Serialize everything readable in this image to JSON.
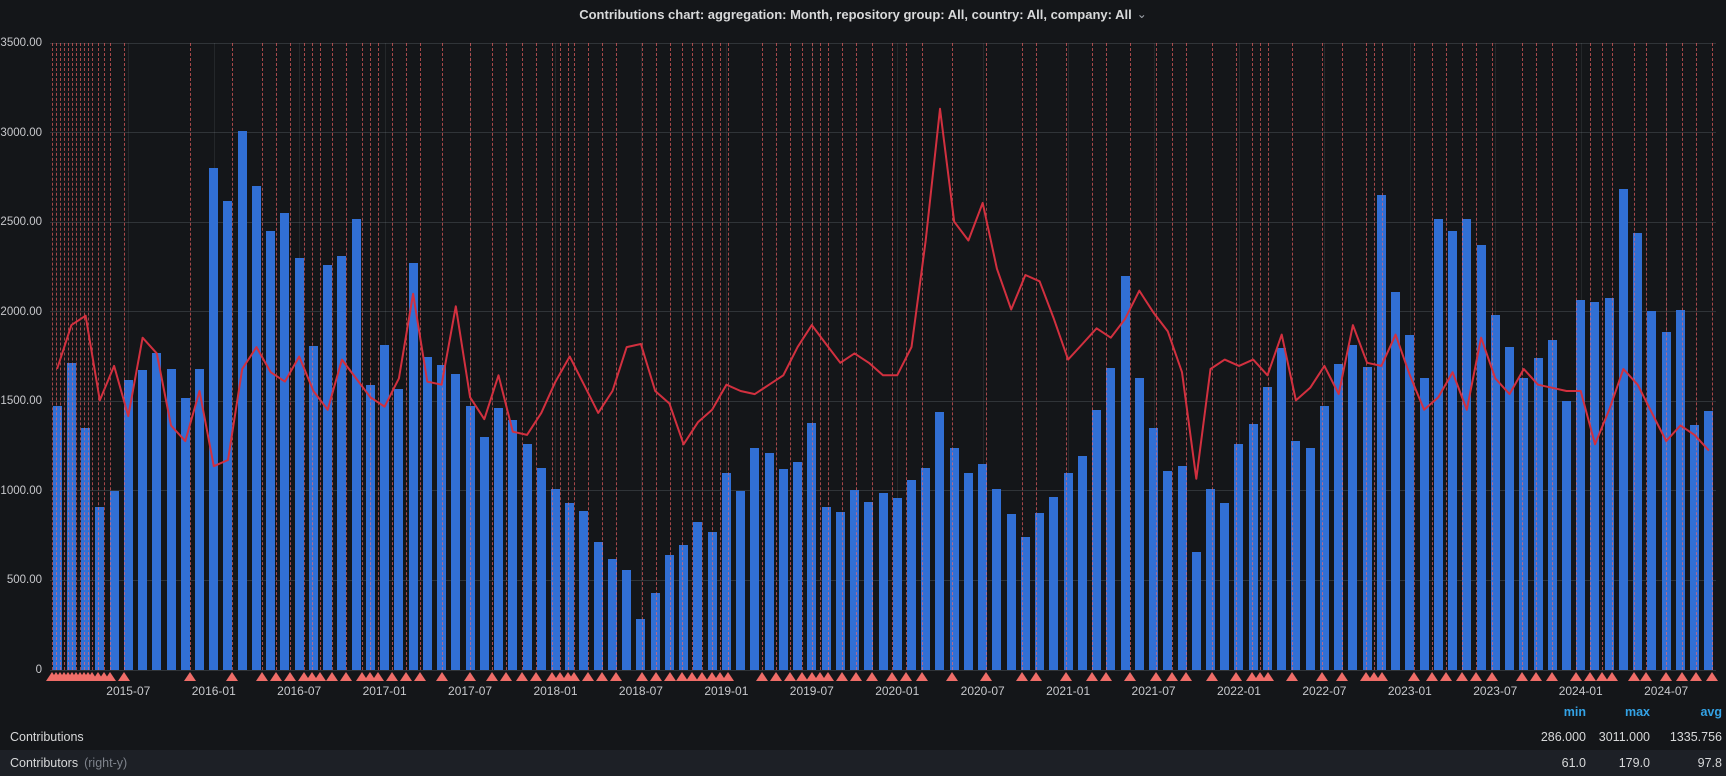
{
  "title": {
    "text": "Contributions chart: aggregation: Month, repository group: All, country: All, company: All"
  },
  "icons": {
    "chevron_down": "⌄"
  },
  "colors": {
    "background": "#141619",
    "bar": "#316fd4",
    "line": "#d2303f",
    "annotation": "rgba(255,103,103,0.62)",
    "annotation_marker": "#ef6d68",
    "grid": "rgba(201,209,224,0.16)",
    "axis_text": "#c7c8cc",
    "legend_header": "#33a2e5",
    "legend_text": "#d8d9da",
    "legend_row_stripe": "#1d2026"
  },
  "chart_data": {
    "type": "bar",
    "title": "Contributions chart: aggregation: Month, repository group: All, country: All, company: All",
    "xlabel": "",
    "ylabel": "",
    "grid": true,
    "legend_position": "bottom-table",
    "x": [
      "2015-02",
      "2015-03",
      "2015-04",
      "2015-05",
      "2015-06",
      "2015-07",
      "2015-08",
      "2015-09",
      "2015-10",
      "2015-11",
      "2015-12",
      "2016-01",
      "2016-02",
      "2016-03",
      "2016-04",
      "2016-05",
      "2016-06",
      "2016-07",
      "2016-08",
      "2016-09",
      "2016-10",
      "2016-11",
      "2016-12",
      "2017-01",
      "2017-02",
      "2017-03",
      "2017-04",
      "2017-05",
      "2017-06",
      "2017-07",
      "2017-08",
      "2017-09",
      "2017-10",
      "2017-11",
      "2017-12",
      "2018-01",
      "2018-02",
      "2018-03",
      "2018-04",
      "2018-05",
      "2018-06",
      "2018-07",
      "2018-08",
      "2018-09",
      "2018-10",
      "2018-11",
      "2018-12",
      "2019-01",
      "2019-02",
      "2019-03",
      "2019-04",
      "2019-05",
      "2019-06",
      "2019-07",
      "2019-08",
      "2019-09",
      "2019-10",
      "2019-11",
      "2019-12",
      "2020-01",
      "2020-02",
      "2020-03",
      "2020-04",
      "2020-05",
      "2020-06",
      "2020-07",
      "2020-08",
      "2020-09",
      "2020-10",
      "2020-11",
      "2020-12",
      "2021-01",
      "2021-02",
      "2021-03",
      "2021-04",
      "2021-05",
      "2021-06",
      "2021-07",
      "2021-08",
      "2021-09",
      "2021-10",
      "2021-11",
      "2021-12",
      "2022-01",
      "2022-02",
      "2022-03",
      "2022-04",
      "2022-05",
      "2022-06",
      "2022-07",
      "2022-08",
      "2022-09",
      "2022-10",
      "2022-11",
      "2022-12",
      "2023-01",
      "2023-02",
      "2023-03",
      "2023-04",
      "2023-05",
      "2023-06",
      "2023-07",
      "2023-08",
      "2023-09",
      "2023-10",
      "2023-11",
      "2023-12",
      "2024-01",
      "2024-02",
      "2024-03",
      "2024-04",
      "2024-05",
      "2024-06",
      "2024-07",
      "2024-08",
      "2024-09",
      "2024-10"
    ],
    "series": [
      {
        "name": "Contributions",
        "type": "bar",
        "axis": "left",
        "color": "#316fd4",
        "values": [
          1475,
          1715,
          1350,
          910,
          1000,
          1620,
          1675,
          1770,
          1680,
          1520,
          1680,
          2800,
          2620,
          3011,
          2700,
          2450,
          2550,
          2300,
          1810,
          2260,
          2310,
          2520,
          1590,
          1815,
          1570,
          2270,
          1745,
          1705,
          1655,
          1475,
          1300,
          1465,
          1395,
          1260,
          1130,
          1010,
          930,
          890,
          715,
          620,
          560,
          286,
          430,
          640,
          700,
          825,
          770,
          1100,
          1000,
          1240,
          1210,
          1120,
          1160,
          1380,
          910,
          880,
          1005,
          940,
          990,
          960,
          1060,
          1130,
          1440,
          1240,
          1100,
          1150,
          1010,
          870,
          740,
          877,
          966,
          1100,
          1195,
          1450,
          1685,
          2200,
          1630,
          1350,
          1110,
          1140,
          660,
          1010,
          930,
          1260,
          1375,
          1580,
          1800,
          1280,
          1240,
          1475,
          1710,
          1815,
          1690,
          2650,
          2110,
          1870,
          1630,
          2520,
          2450,
          2520,
          2370,
          1980,
          1805,
          1630,
          1740,
          1840,
          1500,
          2065,
          2055,
          2075,
          2685,
          2440,
          2005,
          1885,
          2010,
          1370,
          1445
        ]
      },
      {
        "name": "Contributors",
        "type": "line",
        "axis": "right",
        "color": "#d2303f",
        "values": [
          96,
          110,
          113,
          86,
          97,
          81,
          106,
          101,
          78,
          73,
          89,
          65,
          67,
          96,
          103,
          95,
          92,
          100,
          89,
          83,
          99,
          93,
          87,
          84,
          93,
          120,
          92,
          91,
          116,
          87,
          80,
          94,
          76,
          75,
          82,
          92,
          100,
          91,
          82,
          89,
          103,
          104,
          89,
          85,
          72,
          79,
          83,
          91,
          89,
          88,
          91,
          94,
          103,
          110,
          104,
          98,
          101,
          98,
          94,
          94,
          103,
          137,
          179,
          143,
          137,
          149,
          128,
          115,
          126,
          124,
          112,
          99,
          104,
          109,
          106,
          112,
          121,
          114,
          108,
          95,
          61,
          96,
          99,
          97,
          99,
          94,
          107,
          86,
          90,
          97,
          88,
          110,
          98,
          97,
          107,
          94,
          83,
          87,
          95,
          83,
          106,
          93,
          88,
          96,
          91,
          90,
          89,
          89,
          72,
          83,
          96,
          91,
          82,
          73,
          78,
          75,
          70
        ]
      }
    ],
    "left_axis": {
      "range": [
        0,
        3500
      ],
      "tick_step": 500,
      "tick_labels": [
        "3500.00",
        "3000.00",
        "2500.00",
        "2000.00",
        "1500.00",
        "1000.00",
        "500.00",
        "0"
      ]
    },
    "right_axis": {
      "range": [
        0,
        200
      ],
      "tick_labels_visible": false
    },
    "x_tick_labels": [
      "2015-07",
      "2016-01",
      "2016-07",
      "2017-01",
      "2017-07",
      "2018-01",
      "2018-07",
      "2019-01",
      "2019-07",
      "2020-01",
      "2020-07",
      "2021-01",
      "2021-07",
      "2022-01",
      "2022-07",
      "2023-01",
      "2023-07",
      "2024-01",
      "2024-07"
    ],
    "annotations_x_pct": [
      0.12,
      0.36,
      0.6,
      0.84,
      1.08,
      1.32,
      1.56,
      1.8,
      2.04,
      2.28,
      2.52,
      2.88,
      3.24,
      3.6,
      4.44,
      8.4,
      10.92,
      12.72,
      13.56,
      14.4,
      15.24,
      15.72,
      16.21,
      16.93,
      17.77,
      18.73,
      19.21,
      19.69,
      20.53,
      21.37,
      22.21,
      23.53,
      25.21,
      26.53,
      27.37,
      28.33,
      29.17,
      30.13,
      30.61,
      31.09,
      31.45,
      32.29,
      33.13,
      33.97,
      35.53,
      36.37,
      37.21,
      37.93,
      38.53,
      39.13,
      39.73,
      40.22,
      40.7,
      42.74,
      43.58,
      44.42,
      45.14,
      45.74,
      46.22,
      46.7,
      47.54,
      48.38,
      49.34,
      50.54,
      51.38,
      52.34,
      54.14,
      56.18,
      58.34,
      59.18,
      60.98,
      62.55,
      63.39,
      64.83,
      66.39,
      67.35,
      68.19,
      69.75,
      71.19,
      72.15,
      72.63,
      73.11,
      74.55,
      76.35,
      77.55,
      78.99,
      79.47,
      79.95,
      81.87,
      82.95,
      83.79,
      84.75,
      85.59,
      86.55,
      88.36,
      89.2,
      90.16,
      91.6,
      92.44,
      93.16,
      93.76,
      95.08,
      95.8,
      97.0,
      97.96,
      98.8,
      99.76
    ]
  },
  "legend": {
    "columns": {
      "min": "min",
      "max": "max",
      "avg": "avg"
    },
    "rows": [
      {
        "label": "Contributions",
        "suffix": "",
        "min": "286.000",
        "max": "3011.000",
        "avg": "1335.756"
      },
      {
        "label": "Contributors",
        "suffix": "(right-y)",
        "min": "61.0",
        "max": "179.0",
        "avg": "97.8"
      }
    ]
  }
}
